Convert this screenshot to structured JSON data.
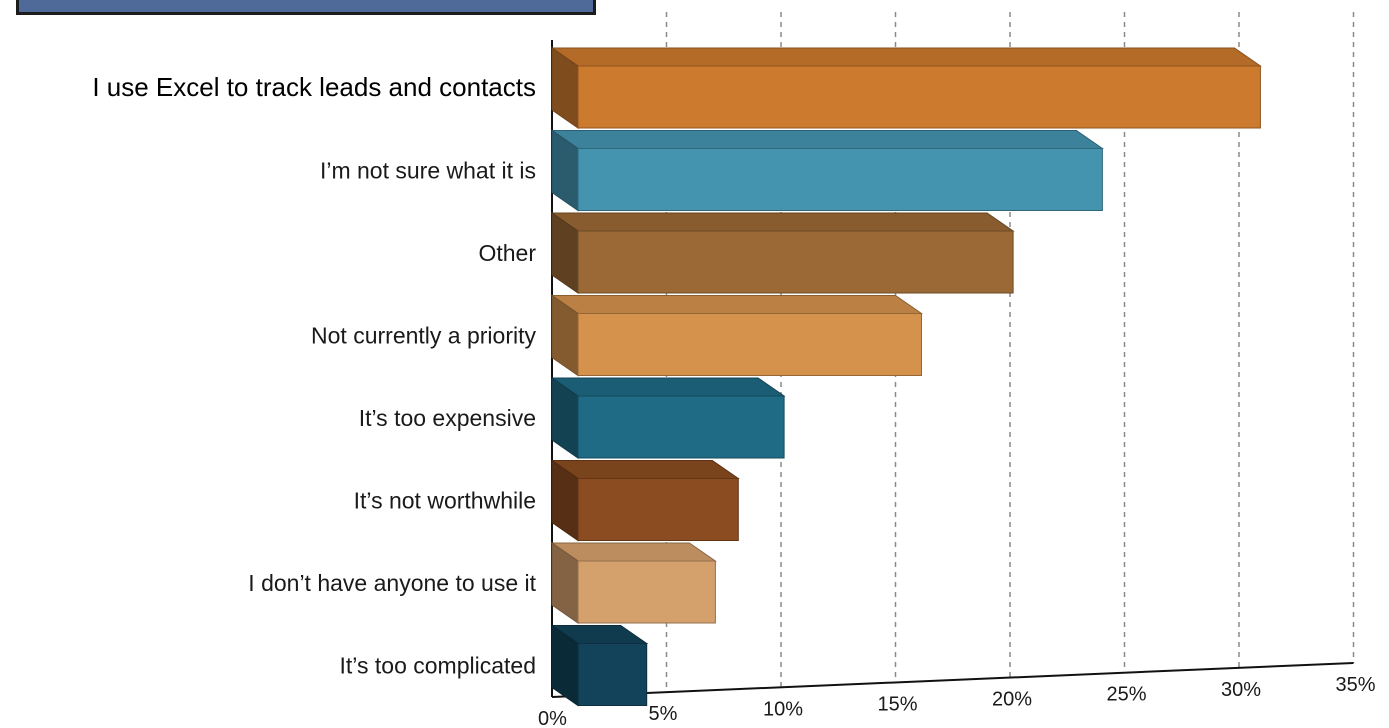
{
  "chart_data": {
    "type": "bar",
    "orientation": "horizontal",
    "style": "3d",
    "categories": [
      "I use Excel to track leads and contacts",
      "I’m not sure what it is",
      "Other",
      "Not currently a priority",
      "It’s too expensive",
      "It’s not worthwhile",
      "I don’t have anyone to use it",
      "It’s too complicated"
    ],
    "values": [
      29.8,
      22.9,
      19.0,
      15.0,
      9.0,
      7.0,
      6.0,
      3.0
    ],
    "colors": [
      "#cc7a2e",
      "#4494b0",
      "#9a6935",
      "#d5924c",
      "#1f6a85",
      "#8a4c20",
      "#d4a06c",
      "#12435a"
    ],
    "xlim": [
      0,
      35
    ],
    "ticks": [
      "0%",
      "5%",
      "10%",
      "15%",
      "20%",
      "25%",
      "30%",
      "35%"
    ],
    "grid": "vertical dashed",
    "title": "",
    "xlabel": "",
    "ylabel": ""
  }
}
